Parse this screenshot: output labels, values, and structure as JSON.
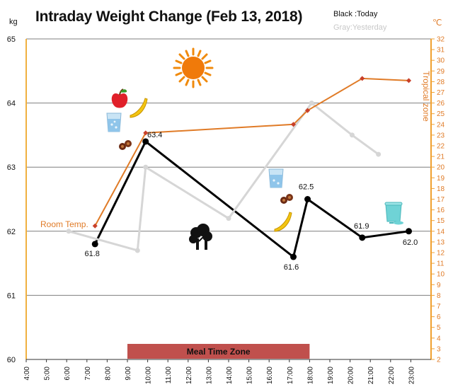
{
  "chart_data": {
    "type": "line",
    "title": "Intraday Weight Change (Feb 13, 2018)",
    "legend": {
      "today": "Black :Today",
      "yesterday": "Gray:Yesterday"
    },
    "y_left_unit": "kg",
    "y_right_unit": "℃",
    "y_left_lim": [
      60,
      65
    ],
    "y_right_lim": [
      2,
      32
    ],
    "x_lim": [
      4,
      24
    ],
    "x_ticks": [
      "4:00",
      "5:00",
      "6:00",
      "7:00",
      "8:00",
      "9:00",
      "10:00",
      "11:00",
      "12:00",
      "13:00",
      "14:00",
      "15:00",
      "16:00",
      "17:00",
      "18:00",
      "19:00",
      "20:00",
      "21:00",
      "22:00",
      "23:00"
    ],
    "y_left_ticks": [
      "60",
      "61",
      "62",
      "63",
      "64",
      "65"
    ],
    "y_right_ticks": [
      "2",
      "3",
      "4",
      "5",
      "6",
      "7",
      "8",
      "9",
      "10",
      "11",
      "12",
      "13",
      "14",
      "15",
      "16",
      "17",
      "18",
      "19",
      "20",
      "21",
      "22",
      "23",
      "24",
      "25",
      "26",
      "27",
      "28",
      "29",
      "30",
      "31",
      "32"
    ],
    "series": [
      {
        "name": "Today",
        "color": "#000000",
        "x": [
          7.4,
          9.9,
          17.2,
          17.9,
          20.6,
          22.9
        ],
        "y": [
          61.8,
          63.4,
          61.6,
          62.5,
          61.9,
          62.0
        ],
        "labels": [
          "61.8",
          "63.4",
          "61.6",
          "62.5",
          "61.9",
          "62.0"
        ]
      },
      {
        "name": "Yesterday",
        "color": "#d6d6d6",
        "x": [
          6.1,
          9.5,
          9.9,
          14.0,
          18.1,
          20.1,
          21.4
        ],
        "y": [
          62.0,
          61.7,
          63.0,
          62.2,
          64.0,
          63.5,
          63.2
        ]
      },
      {
        "name": "Temperature",
        "color": "#e07b27",
        "axis": "right",
        "x": [
          7.4,
          9.9,
          17.2,
          17.9,
          20.6,
          22.9
        ],
        "y": [
          14.5,
          23.2,
          24.0,
          25.3,
          28.3,
          28.1
        ]
      }
    ],
    "annotations": {
      "room_temp": "Room Temp.",
      "tropical_zone": "Tropical zone",
      "meal_zone": "Meal Time Zone",
      "meal_zone_range": [
        9.0,
        18.0
      ],
      "room_temp_value": 14,
      "tropical_zone_range": [
        25,
        32
      ]
    },
    "grid": "horizontal",
    "colors": {
      "meal_zone": "#c0504d",
      "temp_axis": "#f0a030",
      "grid": "#7f7f7f"
    },
    "icons": [
      "sun-icon",
      "apple-icon",
      "banana-icon",
      "water-glass-icon",
      "dried-fruit-icon",
      "tree-icon",
      "cup-icon"
    ]
  }
}
